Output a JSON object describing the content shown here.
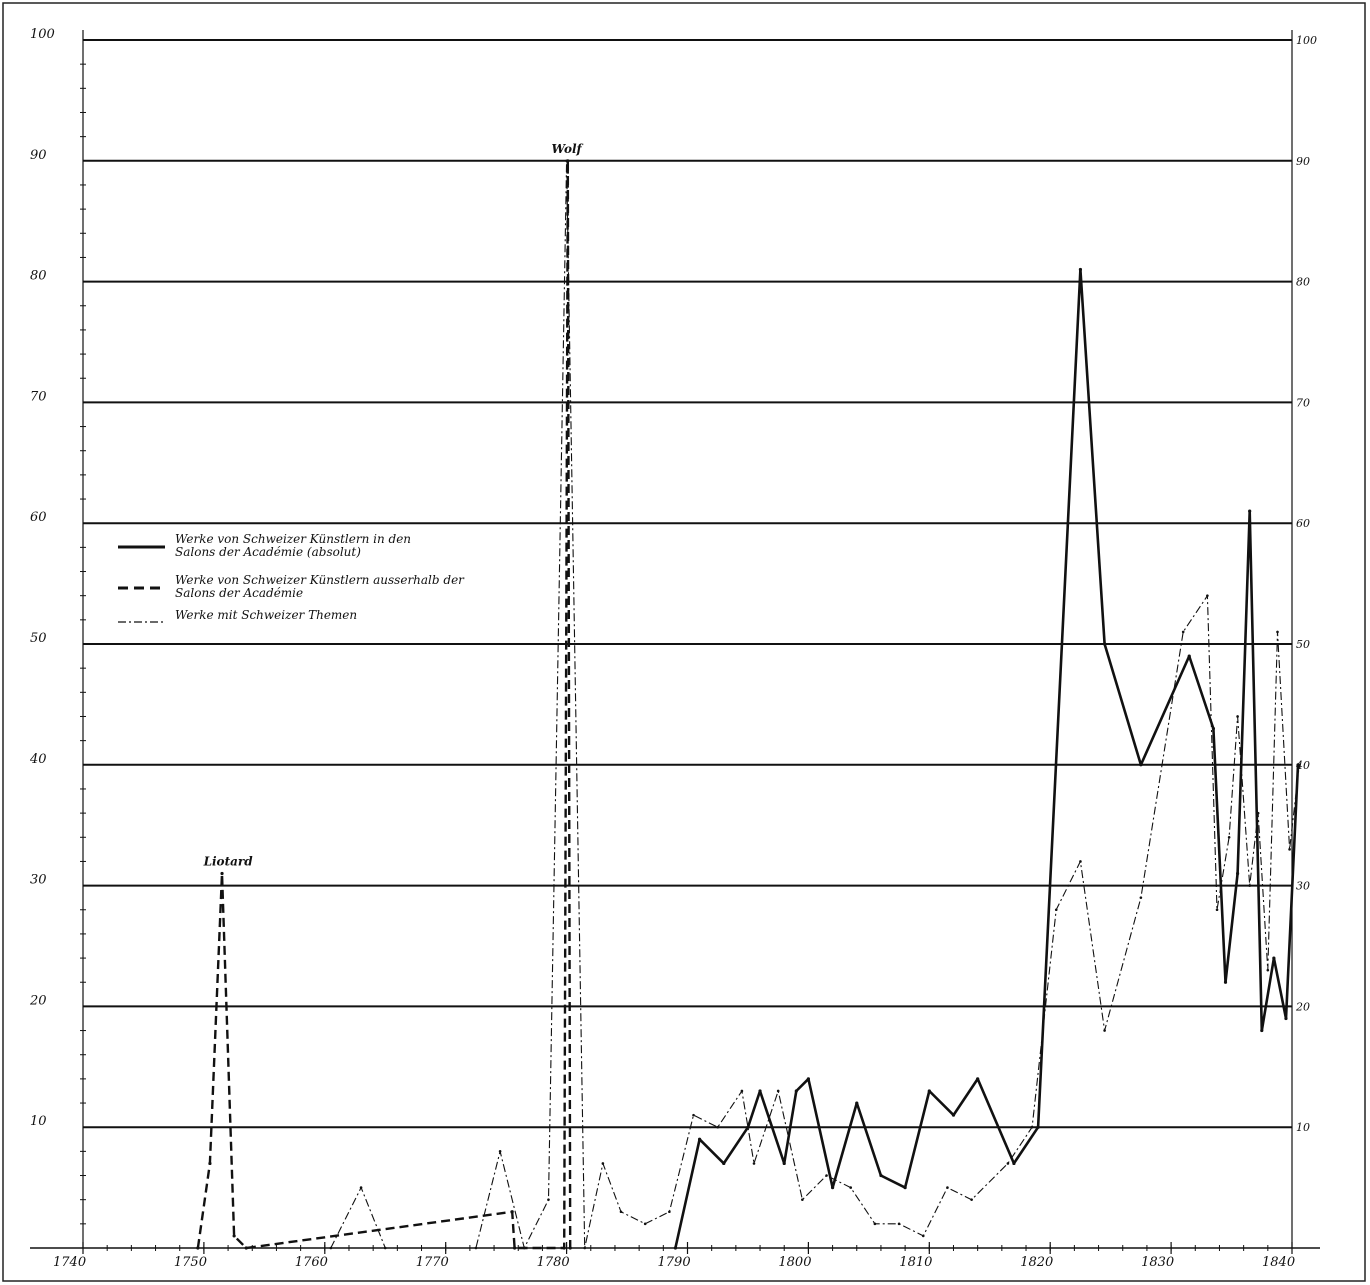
{
  "chart_data": {
    "type": "line",
    "title": "",
    "xlabel": "",
    "ylabel": "",
    "xlim": [
      1740,
      1840
    ],
    "ylim": [
      0,
      100
    ],
    "grid": true,
    "legend_position": "center-left",
    "x_ticks": [
      {
        "value": 1740,
        "label": "1740"
      },
      {
        "value": 1750,
        "label": "1750"
      },
      {
        "value": 1760,
        "label": "1760"
      },
      {
        "value": 1770,
        "label": "1770"
      },
      {
        "value": 1780,
        "label": "1780"
      },
      {
        "value": 1790,
        "label": "1790"
      },
      {
        "value": 1800,
        "label": "1800"
      },
      {
        "value": 1810,
        "label": "1810"
      },
      {
        "value": 1820,
        "label": "1820"
      },
      {
        "value": 1830,
        "label": "1830"
      },
      {
        "value": 1840,
        "label": "1840"
      }
    ],
    "y_ticks": [
      {
        "value": 10,
        "label": "10"
      },
      {
        "value": 20,
        "label": "20"
      },
      {
        "value": 30,
        "label": "30"
      },
      {
        "value": 40,
        "label": "40"
      },
      {
        "value": 50,
        "label": "50"
      },
      {
        "value": 60,
        "label": "60"
      },
      {
        "value": 70,
        "label": "70"
      },
      {
        "value": 80,
        "label": "80"
      },
      {
        "value": 90,
        "label": "90"
      },
      {
        "value": 100,
        "label": "100"
      }
    ],
    "series": [
      {
        "name": "Werke von Schweizer Künstlern in den Salons der Académie (absolut)",
        "style": "solid",
        "color": "#111111",
        "x": [
          1789,
          1791,
          1793,
          1795,
          1796,
          1798,
          1799,
          1800,
          1802,
          1804,
          1806,
          1808,
          1810,
          1812,
          1814,
          1817,
          1819,
          1822.5,
          1824.5,
          1827.5,
          1831.5,
          1833.5,
          1834.5,
          1835.5,
          1836.5,
          1837.5,
          1838.5,
          1839.5,
          1840.5
        ],
        "y": [
          0,
          9,
          7,
          10,
          13,
          7,
          13,
          14,
          5,
          12,
          6,
          5,
          13,
          11,
          14,
          7,
          10,
          81,
          50,
          40,
          49,
          43,
          22,
          31,
          61,
          18,
          24,
          19,
          40
        ]
      },
      {
        "name": "Werke von Schweizer Künstlern ausserhalb der Salons der Académie",
        "style": "dashed",
        "color": "#111111",
        "x": [
          1749.5,
          1750.5,
          1751.5,
          1752.5,
          1753.5,
          1775.5,
          1775.7,
          1779.8,
          1780.1,
          1780.3
        ],
        "y": [
          0,
          7,
          31,
          1,
          0,
          3,
          0,
          0,
          90,
          0
        ]
      },
      {
        "name": "Werke mit Schweizer Themen",
        "style": "dash-dot",
        "color": "#111111",
        "x": [
          1760.5,
          1763,
          1765,
          1772.5,
          1774.5,
          1776.5,
          1778.5,
          1780,
          1781.5,
          1783,
          1784.5,
          1786.5,
          1788.5,
          1790.5,
          1792.5,
          1794.5,
          1795.5,
          1797.5,
          1799.5,
          1801.5,
          1803.5,
          1805.5,
          1807.5,
          1809.5,
          1811.5,
          1813.5,
          1816.5,
          1818.5,
          1820.5,
          1822.5,
          1824.5,
          1827.5,
          1831,
          1833,
          1833.8,
          1834.8,
          1835.5,
          1836.5,
          1837.2,
          1838,
          1838.8,
          1839.8,
          1840.6
        ],
        "y": [
          0,
          5,
          0,
          0,
          8,
          0,
          4,
          90,
          0,
          7,
          3,
          2,
          3,
          11,
          10,
          13,
          7,
          13,
          4,
          6,
          5,
          2,
          2,
          1,
          5,
          4,
          7,
          10,
          28,
          32,
          18,
          29,
          51,
          54,
          28,
          34,
          44,
          30,
          36,
          23,
          51,
          33,
          40
        ]
      }
    ],
    "annotations": [
      {
        "text": "Liotard",
        "x": 1752,
        "y": 31
      },
      {
        "text": "Wolf",
        "x": 1780,
        "y": 90
      }
    ]
  }
}
